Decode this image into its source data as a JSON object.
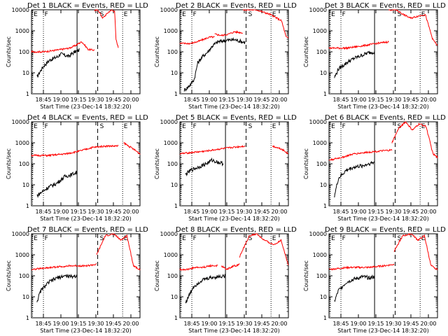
{
  "page": {
    "suptitle_template": "{det} BLACK = Events, RED = LLD",
    "xlabel": "Start Time (23-Dec-14 18:32:20)",
    "ylabel": "Counts/sec",
    "colors": {
      "events": "#000000",
      "lld": "#ff0000",
      "axis": "#000000"
    }
  },
  "chart_data": [
    {
      "type": "line",
      "title": "Det 1 BLACK = Events, RED = LLD",
      "xlabel": "Start Time (23-Dec-14 18:32:20)",
      "ylabel": "Counts/sec",
      "yscale": "log",
      "ylim": [
        1,
        10000
      ],
      "xticks": [
        "18:45",
        "19:00",
        "19:15",
        "19:30",
        "19:45",
        "20:00"
      ],
      "flags": [
        "E",
        "F",
        "S",
        "E"
      ],
      "series": [
        {
          "key": "events",
          "x": [
            0.0,
            0.08,
            0.15,
            0.3,
            0.5,
            0.55,
            0.65,
            0.75,
            0.82,
            0.9,
            1.0
          ],
          "y": [
            6,
            12,
            20,
            40,
            60,
            80,
            70,
            60,
            80,
            100,
            120
          ]
        },
        {
          "key": "lld",
          "x": [
            0.0,
            0.2,
            0.4,
            0.6,
            0.7,
            0.75,
            0.8,
            0.85,
            0.9,
            1.0
          ],
          "y": [
            100,
            100,
            120,
            150,
            200,
            250,
            300,
            200,
            130,
            120
          ]
        },
        {
          "key": "lld",
          "x": [
            0.0,
            0.15,
            0.35,
            0.6,
            0.75,
            0.85,
            0.9,
            1.0
          ],
          "y": [
            9000,
            10000,
            4000,
            8000,
            10000,
            8000,
            400,
            160
          ]
        }
      ]
    },
    {
      "type": "line",
      "title": "Det 2 BLACK = Events, RED = LLD",
      "xlabel": "Start Time (23-Dec-14 18:32:20)",
      "ylabel": "Counts/sec",
      "yscale": "log",
      "ylim": [
        1,
        10000
      ],
      "xticks": [
        "18:45",
        "19:00",
        "19:15",
        "19:30",
        "19:45",
        "20:00"
      ],
      "flags": [
        "E",
        "F",
        "S",
        "E"
      ],
      "series": [
        {
          "key": "events",
          "x": [
            0.0,
            0.1,
            0.2,
            0.3,
            0.4,
            0.55,
            0.7,
            0.85,
            1.0
          ],
          "y": [
            1.5,
            2,
            3,
            5,
            30,
            60,
            100,
            200,
            300
          ]
        },
        {
          "key": "events",
          "x": [
            0.0,
            0.3,
            0.6,
            1.0
          ],
          "y": [
            300,
            350,
            380,
            280
          ]
        },
        {
          "key": "lld",
          "x": [
            0.0,
            0.3,
            0.5,
            0.7,
            0.85,
            1.0
          ],
          "y": [
            250,
            250,
            300,
            400,
            500,
            500
          ]
        },
        {
          "key": "lld",
          "x": [
            0.0,
            0.25,
            0.5,
            0.7,
            1.0
          ],
          "y": [
            700,
            600,
            700,
            900,
            800
          ]
        },
        {
          "key": "lld",
          "x": [
            0.0,
            0.3,
            0.6,
            0.85,
            0.95,
            1.0
          ],
          "y": [
            10000,
            10000,
            6000,
            3000,
            500,
            450
          ]
        }
      ]
    },
    {
      "type": "line",
      "title": "Det 3 BLACK = Events, RED = LLD",
      "xlabel": "Start Time (23-Dec-14 18:32:20)",
      "ylabel": "Counts/sec",
      "yscale": "log",
      "ylim": [
        1,
        10000
      ],
      "xticks": [
        "18:45",
        "19:00",
        "19:15",
        "19:30",
        "19:45",
        "20:00"
      ],
      "flags": [
        "E",
        "F",
        "S",
        "E"
      ],
      "series": [
        {
          "key": "events",
          "x": [
            0.0,
            0.1,
            0.3,
            0.5,
            0.7,
            0.85,
            1.0
          ],
          "y": [
            6,
            15,
            30,
            50,
            70,
            90,
            100
          ]
        },
        {
          "key": "lld",
          "x": [
            0.0,
            0.3,
            0.6,
            0.8,
            1.0
          ],
          "y": [
            150,
            150,
            200,
            250,
            300
          ]
        },
        {
          "key": "lld",
          "x": [
            0.0,
            0.15,
            0.3,
            0.45,
            0.6,
            0.75,
            0.9,
            1.0
          ],
          "y": [
            10000,
            10000,
            6000,
            4000,
            5000,
            6000,
            400,
            200
          ]
        }
      ]
    },
    {
      "type": "line",
      "title": "Det 4 BLACK = Events, RED = LLD",
      "xlabel": "Start Time (23-Dec-14 18:32:20)",
      "ylabel": "Counts/sec",
      "yscale": "log",
      "ylim": [
        1,
        10000
      ],
      "xticks": [
        "18:45",
        "19:00",
        "19:15",
        "19:30",
        "19:45",
        "20:00"
      ],
      "flags": [
        "E",
        "F",
        "S",
        "E"
      ],
      "series": [
        {
          "key": "events",
          "x": [
            0.0,
            0.15,
            0.3,
            0.5,
            0.7,
            0.85,
            1.0
          ],
          "y": [
            3,
            5,
            8,
            12,
            25,
            30,
            40
          ]
        },
        {
          "key": "lld",
          "x": [
            0.0,
            0.2,
            0.4,
            0.55,
            0.7,
            0.85,
            1.0
          ],
          "y": [
            250,
            250,
            300,
            400,
            600,
            700,
            700
          ]
        },
        {
          "key": "lld",
          "x": [
            0.0,
            0.3,
            0.6,
            1.0
          ],
          "y": [
            1000,
            700,
            500,
            300
          ]
        }
      ]
    },
    {
      "type": "line",
      "title": "Det 5 BLACK = Events, RED = LLD",
      "xlabel": "Start Time (23-Dec-14 18:32:20)",
      "ylabel": "Counts/sec",
      "yscale": "log",
      "ylim": [
        1,
        10000
      ],
      "xticks": [
        "18:45",
        "19:00",
        "19:15",
        "19:30",
        "19:45",
        "20:00"
      ],
      "flags": [
        "E",
        "F",
        "S",
        "E"
      ],
      "series": [
        {
          "key": "events",
          "x": [
            0.0,
            0.15,
            0.35,
            0.55,
            0.7,
            0.85,
            1.0
          ],
          "y": [
            30,
            50,
            70,
            100,
            150,
            120,
            100
          ]
        },
        {
          "key": "lld",
          "x": [
            0.0,
            0.2,
            0.4,
            0.6,
            0.8,
            1.0
          ],
          "y": [
            300,
            350,
            400,
            500,
            600,
            700
          ]
        },
        {
          "key": "lld",
          "x": [
            0.0,
            0.3,
            0.6,
            1.0
          ],
          "y": [
            700,
            600,
            500,
            300
          ]
        }
      ]
    },
    {
      "type": "line",
      "title": "Det 6 BLACK = Events, RED = LLD",
      "xlabel": "Start Time (23-Dec-14 18:32:20)",
      "ylabel": "Counts/sec",
      "yscale": "log",
      "ylim": [
        1,
        10000
      ],
      "xticks": [
        "18:45",
        "19:00",
        "19:15",
        "19:30",
        "19:45",
        "20:00"
      ],
      "flags": [
        "E",
        "F",
        "S",
        "E"
      ],
      "series": [
        {
          "key": "events",
          "x": [
            0.0,
            0.1,
            0.3,
            0.5,
            0.7,
            0.85,
            1.0
          ],
          "y": [
            3,
            20,
            50,
            70,
            80,
            100,
            120
          ]
        },
        {
          "key": "lld",
          "x": [
            0.0,
            0.2,
            0.4,
            0.6,
            0.8,
            1.0
          ],
          "y": [
            150,
            200,
            300,
            350,
            400,
            450
          ]
        },
        {
          "key": "lld",
          "x": [
            0.0,
            0.15,
            0.3,
            0.45,
            0.6,
            0.75,
            0.9,
            1.0
          ],
          "y": [
            1000,
            5000,
            10000,
            4000,
            8000,
            6000,
            300,
            200
          ]
        }
      ]
    },
    {
      "type": "line",
      "title": "Det 7 BLACK = Events, RED = LLD",
      "xlabel": "Start Time (23-Dec-14 18:32:20)",
      "ylabel": "Counts/sec",
      "yscale": "log",
      "ylim": [
        1,
        10000
      ],
      "xticks": [
        "18:45",
        "19:00",
        "19:15",
        "19:30",
        "19:45",
        "20:00"
      ],
      "flags": [
        "E",
        "F",
        "S",
        "E"
      ],
      "series": [
        {
          "key": "events",
          "x": [
            0.0,
            0.1,
            0.3,
            0.5,
            0.7,
            0.85,
            1.0
          ],
          "y": [
            6,
            20,
            50,
            80,
            100,
            90,
            100
          ]
        },
        {
          "key": "lld",
          "x": [
            0.0,
            0.3,
            0.6,
            0.85,
            1.0
          ],
          "y": [
            200,
            250,
            300,
            300,
            350
          ]
        },
        {
          "key": "lld",
          "x": [
            0.0,
            0.2,
            0.4,
            0.55,
            0.7,
            0.85,
            1.0
          ],
          "y": [
            1000,
            8000,
            10000,
            5000,
            8000,
            300,
            200
          ]
        }
      ]
    },
    {
      "type": "line",
      "title": "Det 8 BLACK = Events, RED = LLD",
      "xlabel": "Start Time (23-Dec-14 18:32:20)",
      "ylabel": "Counts/sec",
      "yscale": "log",
      "ylim": [
        1,
        10000
      ],
      "xticks": [
        "18:45",
        "19:00",
        "19:15",
        "19:30",
        "19:45",
        "20:00"
      ],
      "flags": [
        "E",
        "F",
        "S",
        "E"
      ],
      "series": [
        {
          "key": "events",
          "x": [
            0.0,
            0.2,
            0.4,
            0.6,
            0.8,
            1.0
          ],
          "y": [
            5,
            30,
            60,
            80,
            90,
            100
          ]
        },
        {
          "key": "lld",
          "x": [
            0.0,
            0.2,
            0.4,
            0.6,
            0.8,
            1.0
          ],
          "y": [
            200,
            200,
            250,
            250,
            300,
            300
          ]
        },
        {
          "key": "lld",
          "x": [
            0.0,
            0.3,
            0.5,
            0.7,
            0.85,
            1.0
          ],
          "y": [
            300,
            200,
            250,
            300,
            300,
            400
          ]
        },
        {
          "key": "lld",
          "x": [
            0.0,
            0.2,
            0.35,
            0.5,
            0.7,
            0.85,
            0.95,
            1.0
          ],
          "y": [
            800,
            8000,
            10000,
            5000,
            3000,
            5000,
            800,
            300
          ]
        }
      ]
    },
    {
      "type": "line",
      "title": "Det 9 BLACK = Events, RED = LLD",
      "xlabel": "Start Time (23-Dec-14 18:32:20)",
      "ylabel": "Counts/sec",
      "yscale": "log",
      "ylim": [
        1,
        10000
      ],
      "xticks": [
        "18:45",
        "19:00",
        "19:15",
        "19:30",
        "19:45",
        "20:00"
      ],
      "flags": [
        "E",
        "F",
        "S",
        "E"
      ],
      "series": [
        {
          "key": "events",
          "x": [
            0.0,
            0.1,
            0.3,
            0.5,
            0.7,
            0.85,
            1.0
          ],
          "y": [
            6,
            20,
            50,
            70,
            90,
            80,
            90
          ]
        },
        {
          "key": "lld",
          "x": [
            0.0,
            0.3,
            0.6,
            0.85,
            1.0
          ],
          "y": [
            200,
            250,
            250,
            300,
            350
          ]
        },
        {
          "key": "lld",
          "x": [
            0.0,
            0.2,
            0.4,
            0.55,
            0.7,
            0.85,
            1.0
          ],
          "y": [
            1500,
            8000,
            10000,
            5000,
            8000,
            300,
            200
          ]
        }
      ]
    }
  ]
}
